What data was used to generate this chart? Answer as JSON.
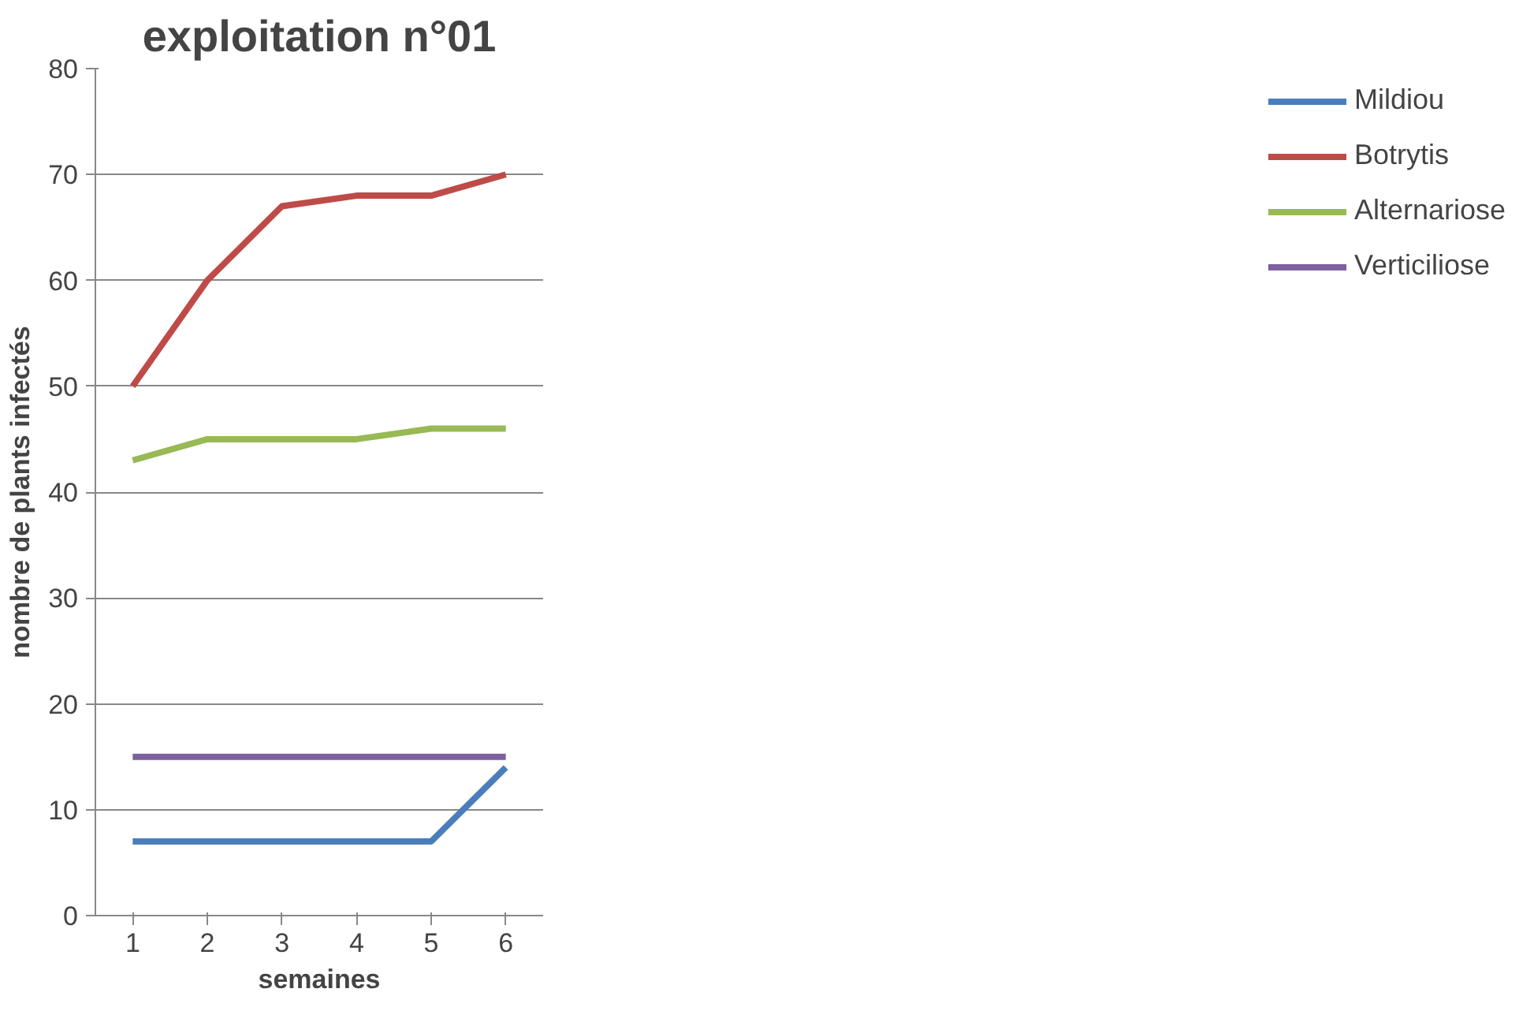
{
  "chart_data": {
    "type": "line",
    "title": "exploitation n°01",
    "xlabel": "semaines",
    "ylabel": "nombre de plants infectés",
    "categories": [
      "1",
      "2",
      "3",
      "4",
      "5",
      "6"
    ],
    "series": [
      {
        "name": "Mildiou",
        "color": "#4a7ebb",
        "values": [
          7,
          7,
          7,
          7,
          7,
          14
        ]
      },
      {
        "name": "Botrytis",
        "color": "#be4b48",
        "values": [
          50,
          60,
          67,
          68,
          68,
          70
        ]
      },
      {
        "name": "Alternariose",
        "color": "#98b954",
        "values": [
          43,
          45,
          45,
          45,
          46,
          46
        ]
      },
      {
        "name": "Verticiliose",
        "color": "#7d60a0",
        "values": [
          15,
          15,
          15,
          15,
          15,
          15
        ]
      }
    ],
    "ylim": [
      0,
      80
    ],
    "yticks": [
      0,
      10,
      20,
      30,
      40,
      50,
      60,
      70,
      80
    ],
    "grid": "y",
    "legend": "right",
    "marker": "none",
    "line_style": "solid"
  }
}
